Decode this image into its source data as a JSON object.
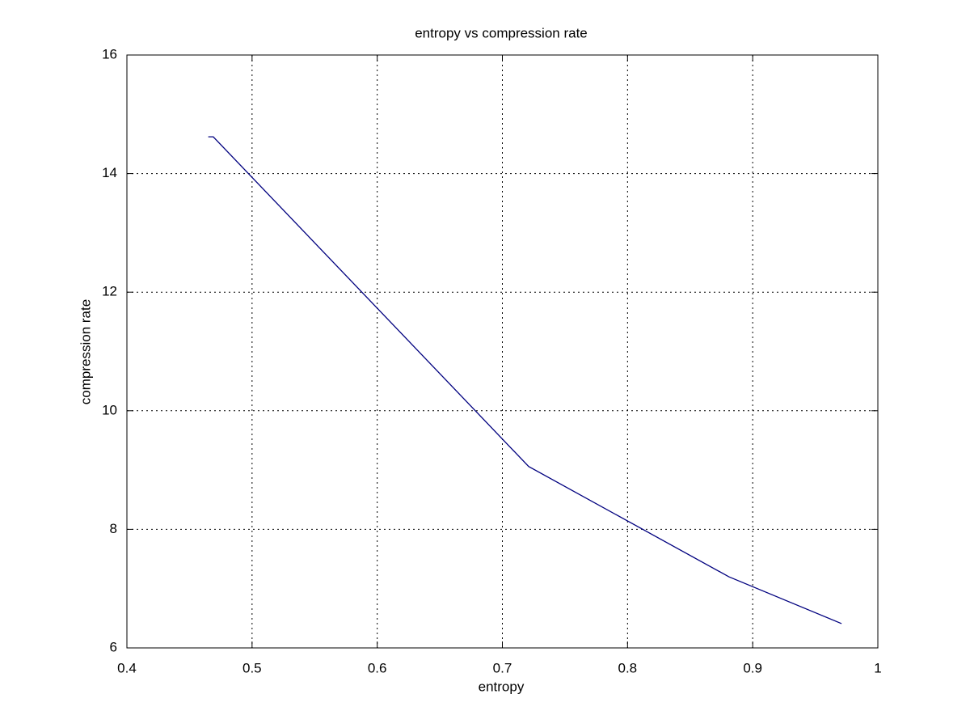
{
  "chart_data": {
    "type": "line",
    "title": "entropy vs compression rate",
    "x_label": "entropy",
    "y_label": "compression rate",
    "x": [
      0.465,
      0.469,
      0.721,
      0.881,
      0.971
    ],
    "values": [
      14.62,
      14.62,
      9.06,
      7.2,
      6.41
    ],
    "color": "#00007f",
    "xlim": [
      0.4,
      1
    ],
    "xticks": [
      0.4,
      0.5,
      0.6,
      0.7,
      0.8,
      0.9,
      1
    ],
    "ylim": [
      6,
      16
    ],
    "yticks": [
      6,
      8,
      10,
      12,
      14,
      16
    ],
    "grid": true
  }
}
